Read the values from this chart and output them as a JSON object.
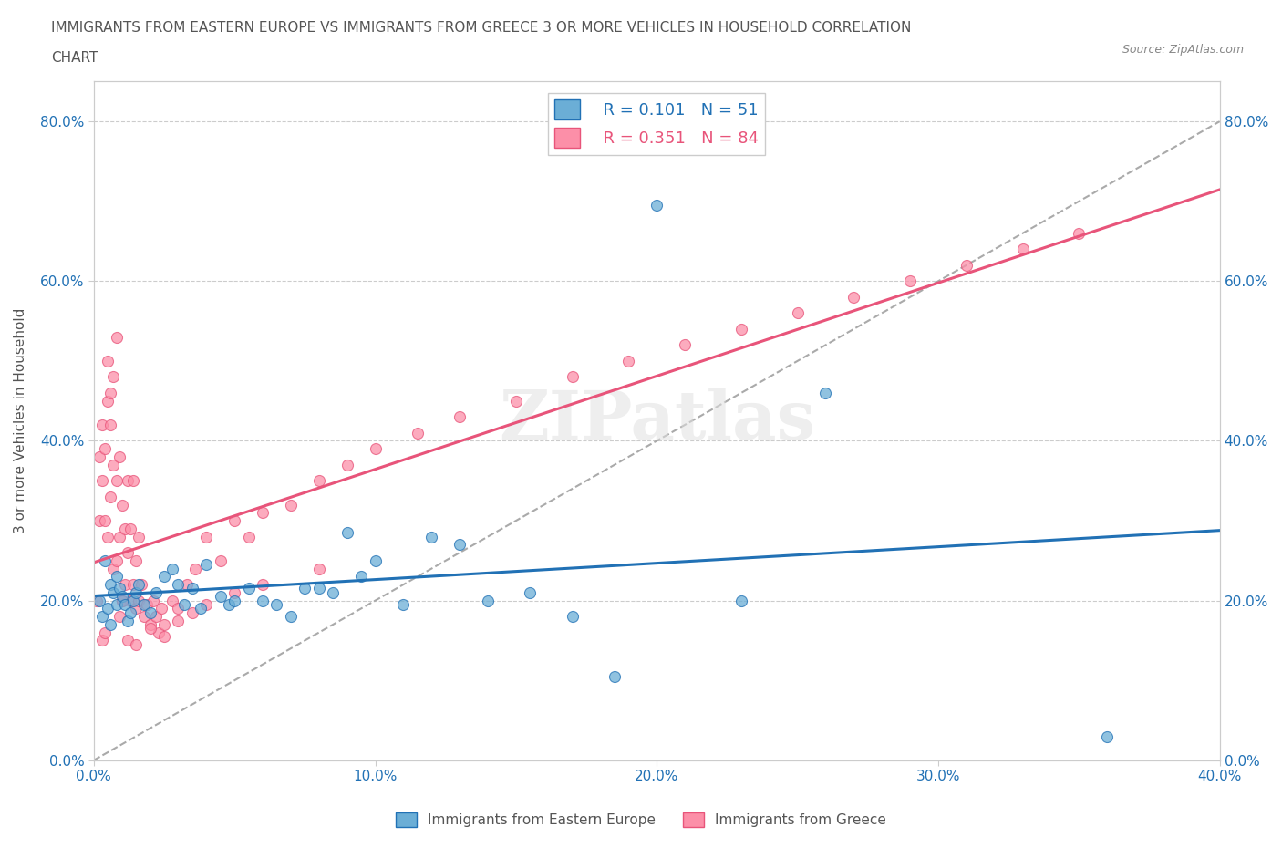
{
  "title_line1": "IMMIGRANTS FROM EASTERN EUROPE VS IMMIGRANTS FROM GREECE 3 OR MORE VEHICLES IN HOUSEHOLD CORRELATION",
  "title_line2": "CHART",
  "source": "Source: ZipAtlas.com",
  "ylabel": "3 or more Vehicles in Household",
  "xlim": [
    0.0,
    0.4
  ],
  "ylim": [
    0.0,
    0.85
  ],
  "xtick_labels": [
    "0.0%",
    "10.0%",
    "20.0%",
    "30.0%",
    "40.0%"
  ],
  "xtick_values": [
    0.0,
    0.1,
    0.2,
    0.3,
    0.4
  ],
  "ytick_labels": [
    "0.0%",
    "20.0%",
    "40.0%",
    "60.0%",
    "80.0%"
  ],
  "ytick_values": [
    0.0,
    0.2,
    0.4,
    0.6,
    0.8
  ],
  "grid_color": "#cccccc",
  "background_color": "#ffffff",
  "watermark": "ZIPatlas",
  "legend_R1": "R = 0.101",
  "legend_N1": "N = 51",
  "legend_R2": "R = 0.351",
  "legend_N2": "N = 84",
  "color_eastern": "#6baed6",
  "color_greece": "#fc8fa8",
  "trendline_eastern_color": "#2171b5",
  "trendline_greece_color": "#e8547a",
  "trendline_dashed_color": "#aaaaaa",
  "scatter_eastern_x": [
    0.002,
    0.003,
    0.004,
    0.005,
    0.006,
    0.006,
    0.007,
    0.008,
    0.008,
    0.009,
    0.01,
    0.011,
    0.012,
    0.013,
    0.014,
    0.015,
    0.016,
    0.018,
    0.02,
    0.022,
    0.025,
    0.028,
    0.03,
    0.032,
    0.035,
    0.038,
    0.04,
    0.045,
    0.048,
    0.05,
    0.055,
    0.06,
    0.065,
    0.07,
    0.075,
    0.08,
    0.085,
    0.09,
    0.095,
    0.1,
    0.11,
    0.12,
    0.13,
    0.14,
    0.155,
    0.17,
    0.185,
    0.2,
    0.23,
    0.26,
    0.36
  ],
  "scatter_eastern_y": [
    0.2,
    0.18,
    0.25,
    0.19,
    0.17,
    0.22,
    0.21,
    0.23,
    0.195,
    0.215,
    0.205,
    0.195,
    0.175,
    0.185,
    0.2,
    0.21,
    0.22,
    0.195,
    0.185,
    0.21,
    0.23,
    0.24,
    0.22,
    0.195,
    0.215,
    0.19,
    0.245,
    0.205,
    0.195,
    0.2,
    0.215,
    0.2,
    0.195,
    0.18,
    0.215,
    0.215,
    0.21,
    0.285,
    0.23,
    0.25,
    0.195,
    0.28,
    0.27,
    0.2,
    0.21,
    0.18,
    0.105,
    0.695,
    0.2,
    0.46,
    0.03
  ],
  "scatter_greece_x": [
    0.001,
    0.002,
    0.002,
    0.003,
    0.003,
    0.004,
    0.004,
    0.005,
    0.005,
    0.006,
    0.006,
    0.007,
    0.007,
    0.008,
    0.008,
    0.009,
    0.009,
    0.01,
    0.01,
    0.011,
    0.011,
    0.012,
    0.012,
    0.013,
    0.013,
    0.014,
    0.014,
    0.015,
    0.015,
    0.016,
    0.016,
    0.017,
    0.018,
    0.019,
    0.02,
    0.021,
    0.022,
    0.023,
    0.024,
    0.025,
    0.028,
    0.03,
    0.033,
    0.036,
    0.04,
    0.045,
    0.05,
    0.055,
    0.06,
    0.07,
    0.08,
    0.09,
    0.1,
    0.115,
    0.13,
    0.15,
    0.17,
    0.19,
    0.21,
    0.23,
    0.25,
    0.27,
    0.29,
    0.31,
    0.33,
    0.35,
    0.005,
    0.006,
    0.007,
    0.008,
    0.009,
    0.01,
    0.003,
    0.004,
    0.012,
    0.015,
    0.02,
    0.025,
    0.03,
    0.035,
    0.04,
    0.05,
    0.06,
    0.08
  ],
  "scatter_greece_y": [
    0.2,
    0.38,
    0.3,
    0.42,
    0.35,
    0.39,
    0.3,
    0.45,
    0.28,
    0.42,
    0.33,
    0.37,
    0.24,
    0.35,
    0.25,
    0.38,
    0.28,
    0.2,
    0.32,
    0.29,
    0.22,
    0.35,
    0.26,
    0.2,
    0.29,
    0.22,
    0.35,
    0.25,
    0.19,
    0.28,
    0.2,
    0.22,
    0.18,
    0.195,
    0.17,
    0.2,
    0.18,
    0.16,
    0.19,
    0.17,
    0.2,
    0.19,
    0.22,
    0.24,
    0.28,
    0.25,
    0.3,
    0.28,
    0.31,
    0.32,
    0.35,
    0.37,
    0.39,
    0.41,
    0.43,
    0.45,
    0.48,
    0.5,
    0.52,
    0.54,
    0.56,
    0.58,
    0.6,
    0.62,
    0.64,
    0.66,
    0.5,
    0.46,
    0.48,
    0.53,
    0.18,
    0.2,
    0.15,
    0.16,
    0.15,
    0.145,
    0.165,
    0.155,
    0.175,
    0.185,
    0.195,
    0.21,
    0.22,
    0.24
  ]
}
